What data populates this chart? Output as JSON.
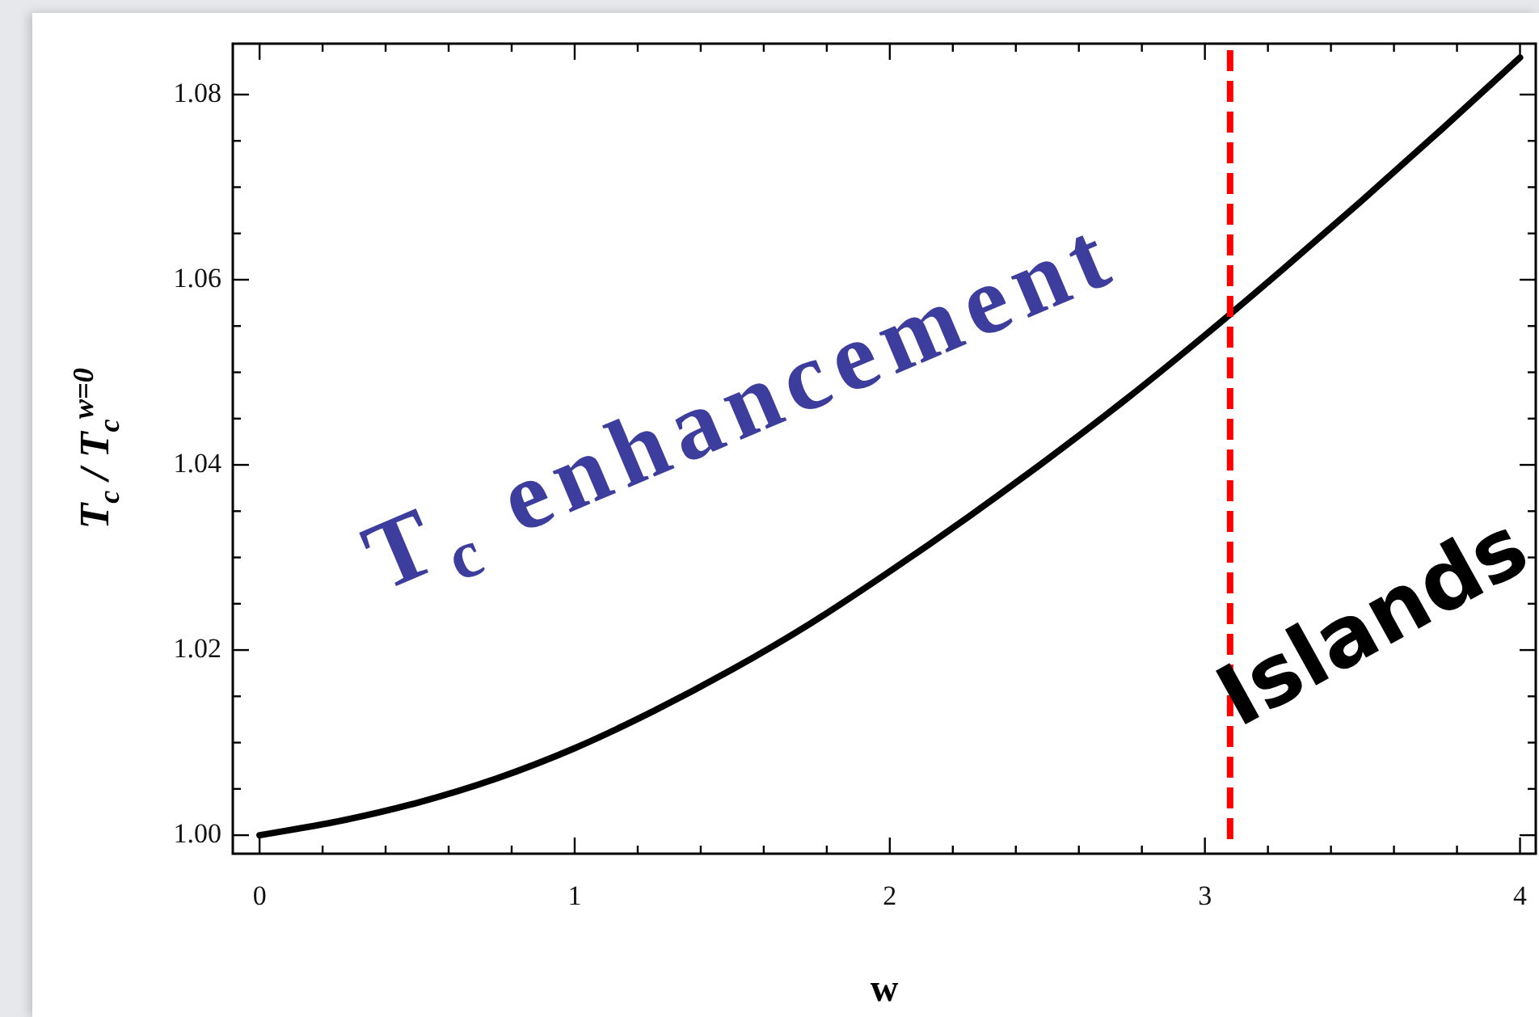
{
  "chart_data": {
    "type": "line",
    "xlabel": "w",
    "ylabel": "T$_{c}$ / T$_{c}$$^{w=0}$",
    "x": [
      0,
      0.25,
      0.5,
      0.75,
      1,
      1.25,
      1.5,
      1.75,
      2,
      2.25,
      2.5,
      2.75,
      3,
      3.25,
      3.5,
      3.75,
      4
    ],
    "series": [
      {
        "color": "#000000",
        "values": [
          1.0,
          1.0015,
          1.0035,
          1.0061,
          1.0094,
          1.0134,
          1.0179,
          1.0229,
          1.0285,
          1.0344,
          1.0406,
          1.0471,
          1.054,
          1.0612,
          1.0686,
          1.0762,
          1.084
        ]
      }
    ],
    "xlim": [
      -0.085,
      4.05
    ],
    "ylim": [
      0.998,
      1.0855
    ],
    "xticks": [
      0,
      {
        "value": 0.2,
        "label": null
      },
      {
        "value": 0.4,
        "label": null
      },
      {
        "value": 0.6,
        "label": null
      },
      {
        "value": 0.8,
        "label": null
      },
      1,
      {
        "value": 1.2,
        "label": null
      },
      {
        "value": 1.4,
        "label": null
      },
      {
        "value": 1.6,
        "label": null
      },
      {
        "value": 1.8,
        "label": null
      },
      2,
      {
        "value": 2.2,
        "label": null
      },
      {
        "value": 2.4,
        "label": null
      },
      {
        "value": 2.6,
        "label": null
      },
      {
        "value": 2.8,
        "label": null
      },
      3,
      {
        "value": 3.2,
        "label": null
      },
      {
        "value": 3.4,
        "label": null
      },
      {
        "value": 3.6,
        "label": null
      },
      {
        "value": 3.8,
        "label": null
      },
      4
    ],
    "yticks": [
      {
        "value": 1,
        "label": "1.00"
      },
      {
        "value": 1.005,
        "label": null
      },
      {
        "value": 1.01,
        "label": null
      },
      {
        "value": 1.015,
        "label": null
      },
      1.02,
      {
        "value": 1.025,
        "label": null
      },
      {
        "value": 1.03,
        "label": null
      },
      {
        "value": 1.035,
        "label": null
      },
      1.04,
      {
        "value": 1.045,
        "label": null
      },
      {
        "value": 1.05,
        "label": null
      },
      {
        "value": 1.055,
        "label": null
      },
      1.06,
      {
        "value": 1.065,
        "label": null
      },
      {
        "value": 1.07,
        "label": null
      },
      {
        "value": 1.075,
        "label": null
      },
      1.08
    ],
    "ref_lines": [
      {
        "axis": "x",
        "value": 3.08,
        "color": "#ff0000",
        "line_style": "dashed"
      }
    ],
    "annotations": [
      "T$_{c}$ enhancement",
      "Islands"
    ],
    "marker": "none",
    "line_style": "solid",
    "grid": false,
    "legend": false
  }
}
